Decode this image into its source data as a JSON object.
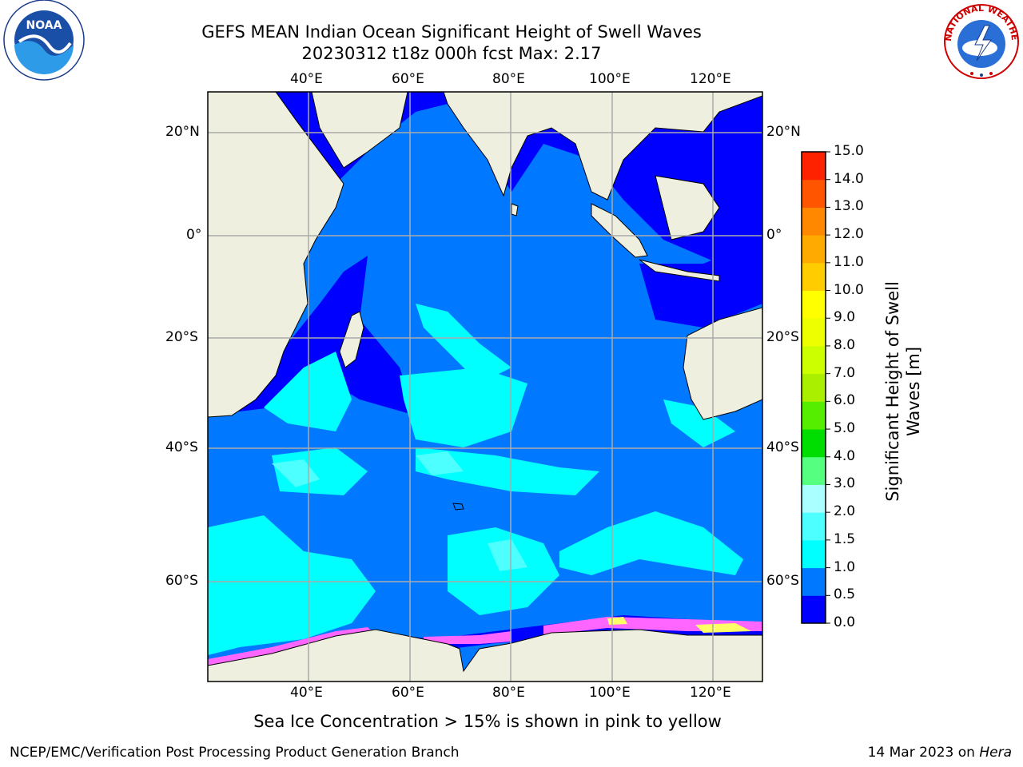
{
  "title": {
    "line1": "GEFS MEAN Indian Ocean Significant Height of Swell Waves",
    "line2": "20230312 t18z 000h fcst   Max: 2.17"
  },
  "map": {
    "lon_ticks": [
      "40°E",
      "60°E",
      "80°E",
      "100°E",
      "120°E"
    ],
    "lat_ticks": [
      "20°N",
      "0°",
      "20°S",
      "40°S",
      "60°S"
    ],
    "colors": {
      "land": "#efefdf",
      "deep_blue": "#0000ff",
      "mid_blue": "#0078ff",
      "cyan": "#00ffff",
      "light_cyan": "#4dffff",
      "ice_pink": "#ff66ff",
      "ice_yellow": "#ffff66",
      "grid": "#aaaaaa"
    },
    "note": "Sea Ice Concentration > 15% is shown in pink to yellow"
  },
  "colorbar": {
    "title_line1": "Significant Height of Swell",
    "title_line2": "Waves [m]",
    "levels": [
      "0.0",
      "0.5",
      "1.0",
      "1.5",
      "2.0",
      "3.0",
      "4.0",
      "5.0",
      "6.0",
      "7.0",
      "8.0",
      "9.0",
      "10.0",
      "11.0",
      "12.0",
      "13.0",
      "14.0",
      "15.0"
    ],
    "bin_colors": [
      "#0000ff",
      "#0078ff",
      "#00ffff",
      "#4dffff",
      "#aaffff",
      "#55ff7f",
      "#00dd00",
      "#55ee00",
      "#aaee00",
      "#ccff00",
      "#eeff00",
      "#ffff00",
      "#ffcc00",
      "#ffaa00",
      "#ff8800",
      "#ff5500",
      "#ff2200"
    ]
  },
  "footer": {
    "left": "NCEP/EMC/Verification Post Processing Product Generation Branch",
    "right_date": "14 Mar 2023 on ",
    "right_machine": "Hera"
  },
  "logos": {
    "noaa_text": "NOAA",
    "nws_text": "NATIONAL WEATHER SERVICE"
  }
}
